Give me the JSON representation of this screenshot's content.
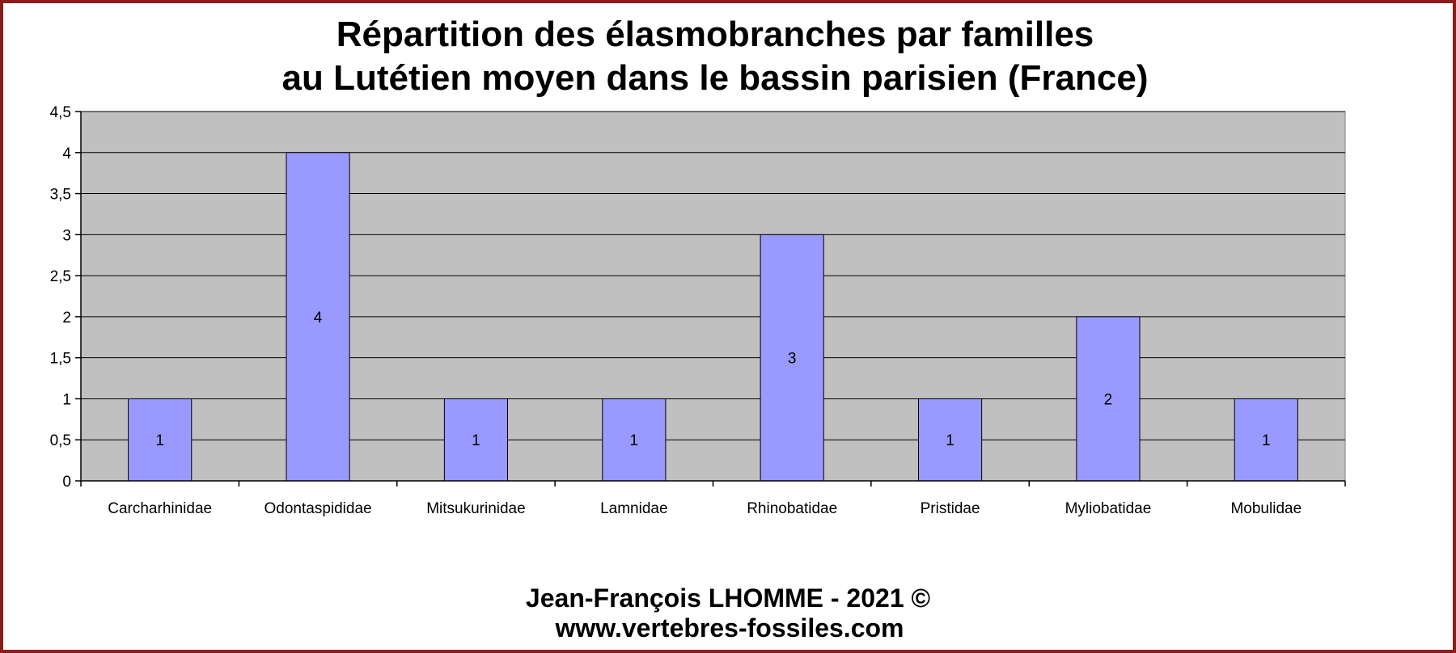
{
  "colors": {
    "frame": "#8b1c1c",
    "plot_background": "#c0c0c0",
    "bar_fill": "#9999ff",
    "bar_stroke": "#000000",
    "gridline": "#000000"
  },
  "chart_data": {
    "type": "bar",
    "title": [
      "Répartition des élasmobranches par familles",
      "au Lutétien moyen dans le bassin parisien (France)"
    ],
    "xlabel": "",
    "ylabel": "",
    "categories": [
      "Carcharhinidae",
      "Odontaspididae",
      "Mitsukurinidae",
      "Lamnidae",
      "Rhinobatidae",
      "Pristidae",
      "Myliobatidae",
      "Mobulidae"
    ],
    "values": [
      1,
      4,
      1,
      1,
      3,
      1,
      2,
      1
    ],
    "data_labels": [
      "1",
      "4",
      "1",
      "1",
      "3",
      "1",
      "2",
      "1"
    ],
    "ylim": [
      0,
      4.5
    ],
    "yticks": [
      0,
      0.5,
      1,
      1.5,
      2,
      2.5,
      3,
      3.5,
      4,
      4.5
    ],
    "ytick_labels": [
      "0",
      "0,5",
      "1",
      "1,5",
      "2",
      "2,5",
      "3",
      "3,5",
      "4",
      "4,5"
    ],
    "grid": true,
    "legend": "none"
  },
  "footer": {
    "author": "Jean-François LHOMME -  2021 ©",
    "website": "www.vertebres-fossiles.com"
  }
}
